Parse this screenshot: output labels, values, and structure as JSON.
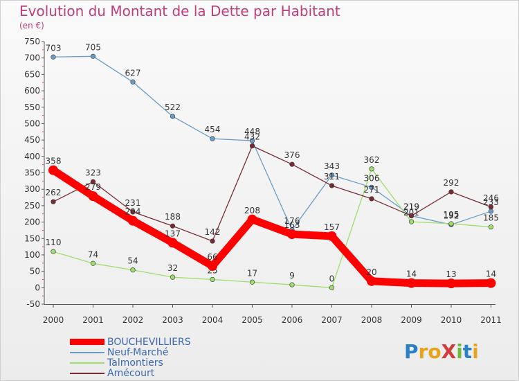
{
  "title": "Evolution du Montant de la Dette par Habitant",
  "subtitle": "(en €)",
  "logo": {
    "text": "ProXiti",
    "letters": [
      {
        "ch": "P",
        "color": "#2b7fc4"
      },
      {
        "ch": "r",
        "color": "#e8a21b"
      },
      {
        "ch": "o",
        "color": "#e8a21b"
      },
      {
        "ch": "X",
        "color": "#d13c3c"
      },
      {
        "ch": "i",
        "color": "#6dbb3c"
      },
      {
        "ch": "t",
        "color": "#2b7fc4"
      },
      {
        "ch": "i",
        "color": "#e8a21b"
      }
    ]
  },
  "chart_data": {
    "type": "line",
    "categories": [
      "2000",
      "2001",
      "2002",
      "2003",
      "2004",
      "2005",
      "2006",
      "2007",
      "2008",
      "2009",
      "2010",
      "2011"
    ],
    "yticks": [
      "-50",
      "0",
      "50",
      "100",
      "150",
      "200",
      "250",
      "300",
      "350",
      "400",
      "450",
      "500",
      "550",
      "600",
      "650",
      "700",
      "750"
    ],
    "ylim": [
      -50,
      750
    ],
    "grid": false,
    "legend_position": "bottom-left",
    "series": [
      {
        "name": "BOUCHEVILLIERS",
        "color": "#ff0000",
        "values": [
          358,
          279,
          204,
          137,
          66,
          208,
          163,
          157,
          20,
          14,
          13,
          14
        ],
        "labels": [
          "358",
          "279",
          "204",
          "137",
          "66",
          "208",
          "163",
          "157",
          "20",
          "14",
          "13",
          "14"
        ]
      },
      {
        "name": "Neuf-Marché",
        "color": "#6a9cc8",
        "values": [
          703,
          705,
          627,
          522,
          454,
          448,
          176,
          343,
          306,
          219,
          192,
          233
        ],
        "labels": [
          "703",
          "705",
          "627",
          "522",
          "454",
          "448",
          "176",
          "343",
          "306",
          "219",
          "192",
          "233"
        ]
      },
      {
        "name": "Talmontiers",
        "color": "#9ede6c",
        "values": [
          110,
          74,
          54,
          32,
          25,
          17,
          9,
          0,
          362,
          201,
          195,
          185
        ],
        "labels": [
          "110",
          "74",
          "54",
          "32",
          "25",
          "17",
          "9",
          "0",
          "362",
          "201",
          "195",
          "185"
        ]
      },
      {
        "name": "Amécourt",
        "color": "#7b2a32",
        "values": [
          262,
          323,
          231,
          188,
          142,
          432,
          376,
          311,
          271,
          219,
          292,
          246
        ],
        "labels": [
          "262",
          "323",
          "231",
          "188",
          "142",
          "432",
          "376",
          "311",
          "271",
          "219",
          "292",
          "246"
        ]
      }
    ]
  }
}
